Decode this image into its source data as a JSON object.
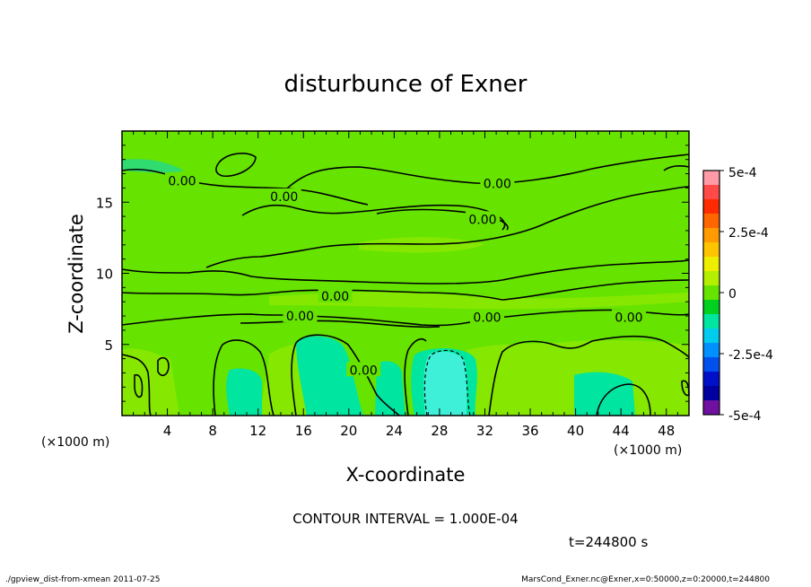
{
  "chart_data": {
    "type": "heatmap",
    "title": "disturbunce of Exner",
    "xlabel": "X-coordinate",
    "ylabel": "Z-coordinate",
    "x_unit": "(×1000 m)",
    "y_unit": "(×1000 m)",
    "xlim": [
      0,
      50
    ],
    "ylim": [
      0,
      20
    ],
    "xticks": [
      4,
      8,
      12,
      16,
      20,
      24,
      28,
      32,
      36,
      40,
      44,
      48
    ],
    "yticks": [
      5,
      10,
      15
    ],
    "colorbar": {
      "range": [
        -0.0005,
        0.0005
      ],
      "labels": [
        "5e-4",
        "2.5e-4",
        "0",
        "-2.5e-4",
        "-5e-4"
      ],
      "colors": [
        "#ff9aa6",
        "#ff4a48",
        "#ff2a00",
        "#ff6600",
        "#ff9a00",
        "#ffc400",
        "#eeee00",
        "#b4ee00",
        "#66e400",
        "#00d020",
        "#00e6a0",
        "#00ccee",
        "#0090ff",
        "#0050ee",
        "#0010c8",
        "#0000a0",
        "#7010a0"
      ]
    },
    "contour_labels": [
      {
        "text": "0.00",
        "x": 5.3,
        "z": 16.5
      },
      {
        "text": "0.00",
        "x": 14.3,
        "z": 15.4
      },
      {
        "text": "0.00",
        "x": 33.1,
        "z": 16.3
      },
      {
        "text": "0.00",
        "x": 31.8,
        "z": 13.8
      },
      {
        "text": "0.00",
        "x": 18.8,
        "z": 8.4
      },
      {
        "text": "0.00",
        "x": 15.7,
        "z": 7.0
      },
      {
        "text": "0.00",
        "x": 32.2,
        "z": 6.9
      },
      {
        "text": "0.00",
        "x": 44.7,
        "z": 6.9
      },
      {
        "text": "0.00",
        "x": 21.3,
        "z": 3.2
      }
    ],
    "contour_interval_text": "CONTOUR INTERVAL = 1.000E-04",
    "time_text": "t=244800 s"
  },
  "footer": {
    "left": "./gpview_dist-from-xmean  2011-07-25",
    "right": "MarsCond_Exner.nc@Exner,x=0:50000,z=0:20000,t=244800"
  }
}
